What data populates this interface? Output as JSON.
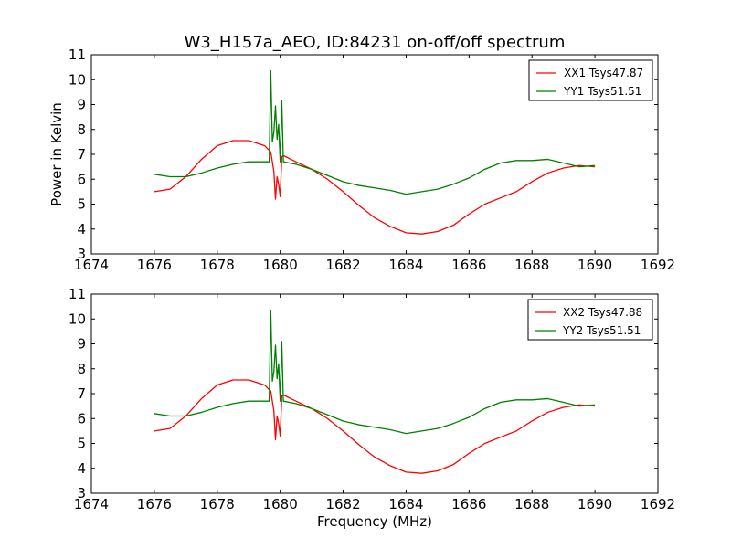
{
  "chart_data": [
    {
      "type": "line",
      "title": "W3_H157a_AEO, ID:84231 on-off/off spectrum",
      "xlabel": "",
      "ylabel": "Power in Kelvin",
      "xlim": [
        1674,
        1692
      ],
      "ylim": [
        3,
        11
      ],
      "xticks": [
        "1674",
        "1676",
        "1678",
        "1680",
        "1682",
        "1684",
        "1686",
        "1688",
        "1690",
        "1692"
      ],
      "yticks": [
        "3",
        "4",
        "5",
        "6",
        "7",
        "8",
        "9",
        "10",
        "11"
      ],
      "legend_position": "top-right",
      "series": [
        {
          "name": "XX1 Tsys47.87",
          "color": "#ff0000",
          "x": [
            1676,
            1676.5,
            1677,
            1677.5,
            1678,
            1678.5,
            1679,
            1679.5,
            1679.7,
            1679.8,
            1679.85,
            1679.9,
            1679.95,
            1680.0,
            1680.05,
            1680.1,
            1680.5,
            1681,
            1681.5,
            1682,
            1682.5,
            1683,
            1683.5,
            1684,
            1684.5,
            1685,
            1685.5,
            1686,
            1686.5,
            1687,
            1687.5,
            1688,
            1688.5,
            1689,
            1689.5,
            1690
          ],
          "values": [
            5.5,
            5.6,
            6.1,
            6.8,
            7.35,
            7.55,
            7.55,
            7.35,
            7.1,
            6.3,
            5.2,
            6.1,
            5.8,
            5.3,
            6.9,
            6.95,
            6.7,
            6.4,
            6.0,
            5.5,
            4.95,
            4.45,
            4.1,
            3.85,
            3.8,
            3.9,
            4.15,
            4.6,
            5.0,
            5.25,
            5.5,
            5.9,
            6.25,
            6.45,
            6.55,
            6.5
          ]
        },
        {
          "name": "YY1 Tsys51.51",
          "color": "#008000",
          "x": [
            1676,
            1676.5,
            1677,
            1677.5,
            1678,
            1678.5,
            1679,
            1679.5,
            1679.65,
            1679.7,
            1679.75,
            1679.8,
            1679.85,
            1679.9,
            1679.95,
            1680.0,
            1680.05,
            1680.1,
            1680.5,
            1681,
            1681.5,
            1682,
            1682.5,
            1683,
            1683.5,
            1684,
            1684.5,
            1685,
            1685.5,
            1686,
            1686.5,
            1687,
            1687.5,
            1688,
            1688.5,
            1689,
            1689.5,
            1690
          ],
          "values": [
            6.2,
            6.1,
            6.1,
            6.25,
            6.45,
            6.6,
            6.7,
            6.7,
            6.7,
            10.35,
            7.5,
            7.9,
            8.95,
            7.6,
            8.2,
            6.7,
            9.15,
            6.7,
            6.6,
            6.4,
            6.15,
            5.9,
            5.75,
            5.65,
            5.55,
            5.4,
            5.5,
            5.6,
            5.8,
            6.05,
            6.4,
            6.65,
            6.75,
            6.75,
            6.8,
            6.65,
            6.5,
            6.55
          ]
        }
      ]
    },
    {
      "type": "line",
      "title": "",
      "xlabel": "Frequency (MHz)",
      "ylabel": "",
      "xlim": [
        1674,
        1692
      ],
      "ylim": [
        3,
        11
      ],
      "xticks": [
        "1674",
        "1676",
        "1678",
        "1680",
        "1682",
        "1684",
        "1686",
        "1688",
        "1690",
        "1692"
      ],
      "yticks": [
        "3",
        "4",
        "5",
        "6",
        "7",
        "8",
        "9",
        "10",
        "11"
      ],
      "legend_position": "top-right",
      "series": [
        {
          "name": "XX2 Tsys47.88",
          "color": "#ff0000",
          "x": [
            1676,
            1676.5,
            1677,
            1677.5,
            1678,
            1678.5,
            1679,
            1679.5,
            1679.7,
            1679.8,
            1679.85,
            1679.9,
            1679.95,
            1680.0,
            1680.05,
            1680.1,
            1680.5,
            1681,
            1681.5,
            1682,
            1682.5,
            1683,
            1683.5,
            1684,
            1684.5,
            1685,
            1685.5,
            1686,
            1686.5,
            1687,
            1687.5,
            1688,
            1688.5,
            1689,
            1689.5,
            1690
          ],
          "values": [
            5.5,
            5.6,
            6.1,
            6.8,
            7.35,
            7.55,
            7.55,
            7.35,
            7.1,
            6.3,
            5.15,
            6.1,
            5.8,
            5.3,
            6.9,
            6.95,
            6.7,
            6.4,
            6.0,
            5.5,
            4.95,
            4.45,
            4.1,
            3.85,
            3.8,
            3.9,
            4.15,
            4.6,
            5.0,
            5.25,
            5.5,
            5.9,
            6.25,
            6.45,
            6.55,
            6.5
          ]
        },
        {
          "name": "YY2 Tsys51.51",
          "color": "#008000",
          "x": [
            1676,
            1676.5,
            1677,
            1677.5,
            1678,
            1678.5,
            1679,
            1679.5,
            1679.65,
            1679.7,
            1679.75,
            1679.8,
            1679.85,
            1679.9,
            1679.95,
            1680.0,
            1680.05,
            1680.1,
            1680.5,
            1681,
            1681.5,
            1682,
            1682.5,
            1683,
            1683.5,
            1684,
            1684.5,
            1685,
            1685.5,
            1686,
            1686.5,
            1687,
            1687.5,
            1688,
            1688.5,
            1689,
            1689.5,
            1690
          ],
          "values": [
            6.2,
            6.1,
            6.1,
            6.25,
            6.45,
            6.6,
            6.7,
            6.7,
            6.7,
            10.35,
            7.5,
            7.9,
            8.95,
            7.6,
            8.2,
            6.7,
            9.1,
            6.7,
            6.6,
            6.4,
            6.15,
            5.9,
            5.75,
            5.65,
            5.55,
            5.4,
            5.5,
            5.6,
            5.8,
            6.05,
            6.4,
            6.65,
            6.75,
            6.75,
            6.8,
            6.65,
            6.5,
            6.55
          ]
        }
      ]
    }
  ]
}
